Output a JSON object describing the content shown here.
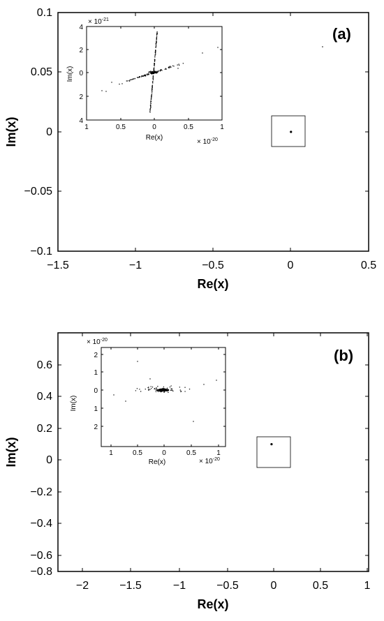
{
  "chart_data": [
    {
      "type": "scatter",
      "panel_label": "(a)",
      "xlabel": "Re(x)",
      "ylabel": "Im(x)",
      "xlim": [
        -1.5,
        0.5
      ],
      "ylim": [
        -0.1,
        0.1
      ],
      "x_ticks": [
        "−1.5",
        "−1",
        "−0.5",
        "0",
        "0.5"
      ],
      "y_ticks": [
        "0.1",
        "0.05",
        "0",
        "−0.05",
        "−0.1"
      ],
      "points": [
        [
          0,
          0
        ]
      ],
      "inset": {
        "xlabel": "Re(x)",
        "ylabel": "Im(x)",
        "x_ticks": [
          "1",
          "0.5",
          "0",
          "0.5",
          "1"
        ],
        "y_ticks": [
          "4",
          "2",
          "0",
          "2",
          "4"
        ],
        "x_multiplier_base": "× 10",
        "x_multiplier_exp": "-20",
        "y_multiplier_base": "× 10",
        "y_multiplier_exp": "-21"
      }
    },
    {
      "type": "scatter",
      "panel_label": "(b)",
      "xlabel": "Re(x)",
      "ylabel": "Im(x)",
      "xlim": [
        -2.2,
        1.0
      ],
      "ylim": [
        -0.8,
        0.7
      ],
      "x_ticks": [
        "−2",
        "−1.5",
        "−1",
        "−0.5",
        "0",
        "0.5",
        "1"
      ],
      "y_ticks": [
        "0.6",
        "0.4",
        "0.2",
        "0",
        "−0.2",
        "−0.4",
        "−0.6",
        "−0.8"
      ],
      "points": [
        [
          0,
          0
        ]
      ],
      "inset": {
        "xlabel": "Re(x)",
        "ylabel": "Im(x)",
        "x_ticks": [
          "1",
          "0.5",
          "0",
          "0.5",
          "1"
        ],
        "y_ticks": [
          "2",
          "1",
          "0",
          "1",
          "2"
        ],
        "x_multiplier_base": "× 10",
        "x_multiplier_exp": "-20",
        "y_multiplier_base": "× 10",
        "y_multiplier_exp": "-20"
      }
    }
  ]
}
